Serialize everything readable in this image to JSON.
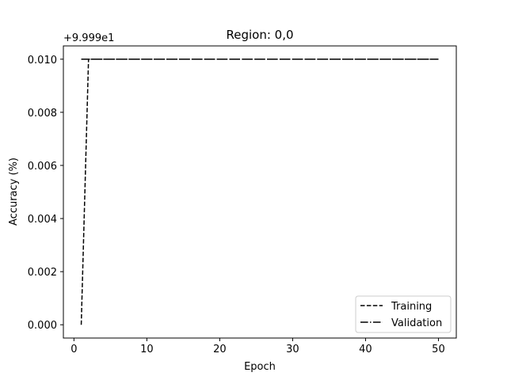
{
  "chart_data": {
    "type": "line",
    "title": "Region: 0,0",
    "xlabel": "Epoch",
    "ylabel": "Accuracy (%)",
    "y_offset_text": "+9.999e1",
    "xlim": [
      -1.45,
      52.45
    ],
    "ylim": [
      -0.0005,
      0.0105
    ],
    "xticks": [
      0,
      10,
      20,
      30,
      40,
      50
    ],
    "xtick_labels": [
      "0",
      "10",
      "20",
      "30",
      "40",
      "50"
    ],
    "yticks": [
      0.0,
      0.002,
      0.004,
      0.006,
      0.008,
      0.01
    ],
    "ytick_labels": [
      "0.000",
      "0.002",
      "0.004",
      "0.006",
      "0.008",
      "0.010"
    ],
    "grid": false,
    "legend_position": "lower-right",
    "series": [
      {
        "name": "Training",
        "style": "dashed",
        "color": "#000000",
        "x": [
          1,
          2,
          3,
          4,
          5,
          6,
          7,
          8,
          9,
          10,
          11,
          12,
          13,
          14,
          15,
          16,
          17,
          18,
          19,
          20,
          21,
          22,
          23,
          24,
          25,
          26,
          27,
          28,
          29,
          30,
          31,
          32,
          33,
          34,
          35,
          36,
          37,
          38,
          39,
          40,
          41,
          42,
          43,
          44,
          45,
          46,
          47,
          48,
          49,
          50
        ],
        "values": [
          0.0,
          0.01,
          0.01,
          0.01,
          0.01,
          0.01,
          0.01,
          0.01,
          0.01,
          0.01,
          0.01,
          0.01,
          0.01,
          0.01,
          0.01,
          0.01,
          0.01,
          0.01,
          0.01,
          0.01,
          0.01,
          0.01,
          0.01,
          0.01,
          0.01,
          0.01,
          0.01,
          0.01,
          0.01,
          0.01,
          0.01,
          0.01,
          0.01,
          0.01,
          0.01,
          0.01,
          0.01,
          0.01,
          0.01,
          0.01,
          0.01,
          0.01,
          0.01,
          0.01,
          0.01,
          0.01,
          0.01,
          0.01,
          0.01,
          0.01
        ]
      },
      {
        "name": "Validation",
        "style": "dashdot",
        "color": "#000000",
        "x": [
          1,
          2,
          3,
          4,
          5,
          6,
          7,
          8,
          9,
          10,
          11,
          12,
          13,
          14,
          15,
          16,
          17,
          18,
          19,
          20,
          21,
          22,
          23,
          24,
          25,
          26,
          27,
          28,
          29,
          30,
          31,
          32,
          33,
          34,
          35,
          36,
          37,
          38,
          39,
          40,
          41,
          42,
          43,
          44,
          45,
          46,
          47,
          48,
          49,
          50
        ],
        "values": [
          0.01,
          0.01,
          0.01,
          0.01,
          0.01,
          0.01,
          0.01,
          0.01,
          0.01,
          0.01,
          0.01,
          0.01,
          0.01,
          0.01,
          0.01,
          0.01,
          0.01,
          0.01,
          0.01,
          0.01,
          0.01,
          0.01,
          0.01,
          0.01,
          0.01,
          0.01,
          0.01,
          0.01,
          0.01,
          0.01,
          0.01,
          0.01,
          0.01,
          0.01,
          0.01,
          0.01,
          0.01,
          0.01,
          0.01,
          0.01,
          0.01,
          0.01,
          0.01,
          0.01,
          0.01,
          0.01,
          0.01,
          0.01,
          0.01,
          0.01
        ]
      }
    ]
  }
}
